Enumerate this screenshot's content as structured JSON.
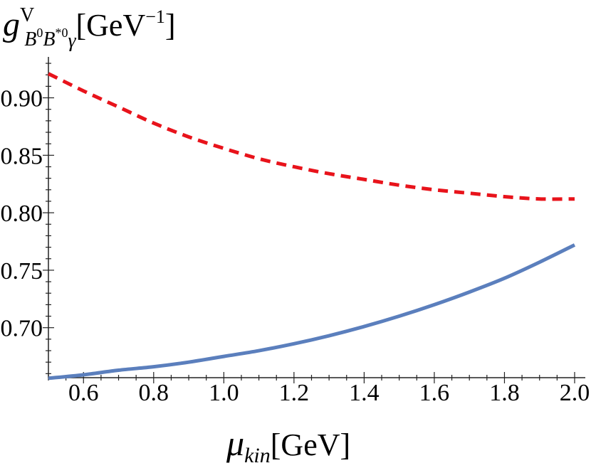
{
  "chart_data": {
    "type": "line",
    "x_tick_labels": [
      "0.6",
      "0.8",
      "1.0",
      "1.2",
      "1.4",
      "1.6",
      "1.8",
      "2.0"
    ],
    "y_tick_labels": [
      "0.70",
      "0.75",
      "0.80",
      "0.85",
      "0.90"
    ],
    "xlim": [
      0.5,
      2.0
    ],
    "ylim": [
      0.6565,
      0.9356
    ],
    "x_axis_crossing_y": 0.6565,
    "xlabel": {
      "symbol": "μ",
      "subscript": "kin",
      "unit": "[GeV]"
    },
    "ylabel": {
      "symbol": "g",
      "superscript": "V",
      "sub_B": "B",
      "sub_B_sup": "0",
      "sub_Bstar": "B",
      "sub_Bstar_sup": "*0",
      "sub_gamma": "γ",
      "unit_prefix": "[GeV",
      "unit_exponent": "−1",
      "unit_suffix": "]"
    },
    "grid": false,
    "series": [
      {
        "style": "dashed",
        "color": "#e8131b",
        "x": [
          0.5,
          0.6,
          0.7,
          0.8,
          0.9,
          1.0,
          1.1,
          1.2,
          1.3,
          1.4,
          1.5,
          1.6,
          1.7,
          1.8,
          1.9,
          2.0
        ],
        "y": [
          0.921,
          0.906,
          0.892,
          0.878,
          0.866,
          0.856,
          0.847,
          0.84,
          0.834,
          0.829,
          0.824,
          0.82,
          0.817,
          0.814,
          0.812,
          0.812
        ]
      },
      {
        "style": "solid",
        "color": "#5b7fbd",
        "x": [
          0.5,
          0.6,
          0.7,
          0.8,
          0.9,
          1.0,
          1.1,
          1.2,
          1.3,
          1.4,
          1.5,
          1.6,
          1.7,
          1.8,
          1.9,
          2.0
        ],
        "y": [
          0.656,
          0.659,
          0.663,
          0.666,
          0.67,
          0.675,
          0.68,
          0.686,
          0.693,
          0.701,
          0.71,
          0.72,
          0.731,
          0.743,
          0.757,
          0.772
        ]
      }
    ]
  }
}
